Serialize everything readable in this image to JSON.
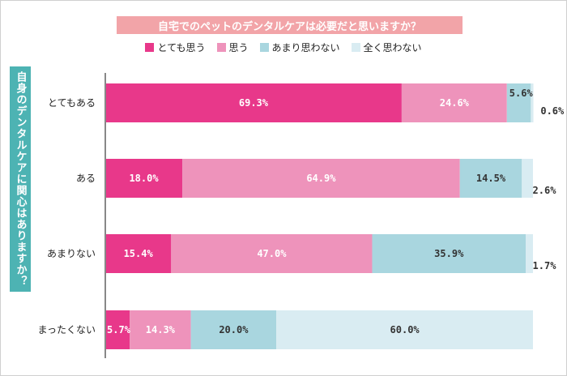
{
  "title": "自宅でのペットのデンタルケアは必要だと思いますか？",
  "side_label": "自身のデンタルケアに関心はありますか？",
  "chart_data": {
    "type": "bar",
    "orientation": "horizontal",
    "stacked": true,
    "categories": [
      "とてもある",
      "ある",
      "あまりない",
      "まったくない"
    ],
    "series": [
      {
        "name": "とても思う",
        "color": "#e8388a",
        "values": [
          69.3,
          18.0,
          15.4,
          5.7
        ]
      },
      {
        "name": "思う",
        "color": "#ee93bb",
        "values": [
          24.6,
          64.9,
          47.0,
          14.3
        ]
      },
      {
        "name": "あまり思わない",
        "color": "#a9d6df",
        "values": [
          5.6,
          14.5,
          35.9,
          20.0
        ]
      },
      {
        "name": "全く思わない",
        "color": "#d9ecf2",
        "values": [
          0.6,
          2.6,
          1.7,
          60.0
        ]
      }
    ],
    "labels": [
      [
        "69.3%",
        "24.6%",
        "5.6%",
        "0.6%"
      ],
      [
        "18.0%",
        "64.9%",
        "14.5%",
        "2.6%"
      ],
      [
        "15.4%",
        "47.0%",
        "35.9%",
        "1.7%"
      ],
      [
        "5.7%",
        "14.3%",
        "20.0%",
        "60.0%"
      ]
    ],
    "xlim": [
      0,
      100
    ],
    "legend": "top"
  }
}
